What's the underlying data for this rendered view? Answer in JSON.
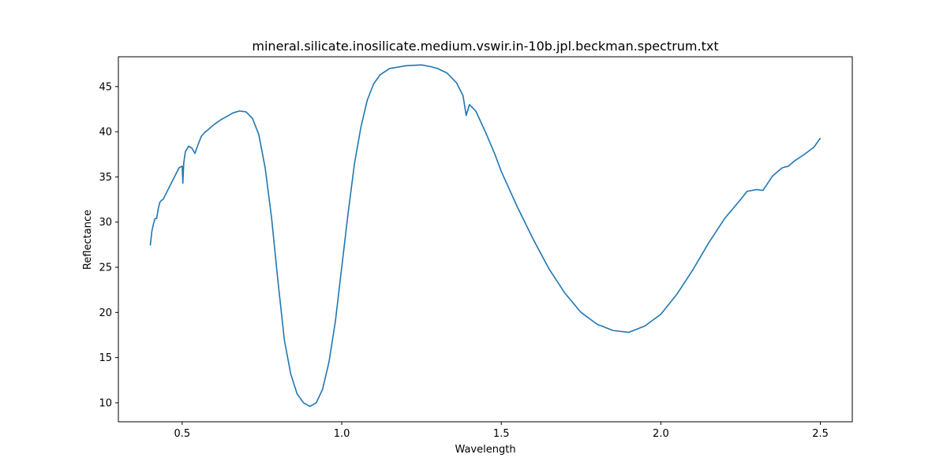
{
  "chart_data": {
    "type": "line",
    "title": "mineral.silicate.inosilicate.medium.vswir.in-10b.jpl.beckman.spectrum.txt",
    "xlabel": "Wavelength",
    "ylabel": "Reflectance",
    "xlim": [
      0.3,
      2.6
    ],
    "ylim": [
      7.9,
      48.3
    ],
    "xticks": [
      0.5,
      1.0,
      1.5,
      2.0,
      2.5
    ],
    "xtick_labels": [
      "0.5",
      "1.0",
      "1.5",
      "2.0",
      "2.5"
    ],
    "yticks": [
      10,
      15,
      20,
      25,
      30,
      35,
      40,
      45
    ],
    "ytick_labels": [
      "10",
      "15",
      "20",
      "25",
      "30",
      "35",
      "40",
      "45"
    ],
    "grid": false,
    "line_color": "#1f77b4",
    "series": [
      {
        "x": [
          0.4,
          0.405,
          0.41,
          0.415,
          0.42,
          0.425,
          0.43,
          0.435,
          0.44,
          0.45,
          0.46,
          0.47,
          0.48,
          0.49,
          0.5,
          0.502,
          0.505,
          0.51,
          0.52,
          0.53,
          0.54,
          0.55,
          0.56,
          0.57,
          0.58,
          0.6,
          0.62,
          0.64,
          0.66,
          0.68,
          0.7,
          0.72,
          0.74,
          0.76,
          0.78,
          0.8,
          0.82,
          0.84,
          0.86,
          0.88,
          0.9,
          0.92,
          0.94,
          0.96,
          0.98,
          1.0,
          1.02,
          1.04,
          1.06,
          1.08,
          1.1,
          1.12,
          1.15,
          1.2,
          1.25,
          1.28,
          1.3,
          1.33,
          1.36,
          1.38,
          1.39,
          1.4,
          1.42,
          1.45,
          1.48,
          1.5,
          1.55,
          1.6,
          1.65,
          1.7,
          1.75,
          1.8,
          1.85,
          1.9,
          1.95,
          2.0,
          2.05,
          2.1,
          2.15,
          2.2,
          2.25,
          2.27,
          2.3,
          2.32,
          2.35,
          2.38,
          2.4,
          2.42,
          2.45,
          2.48,
          2.5
        ],
        "y": [
          27.4,
          29.0,
          29.8,
          30.4,
          30.4,
          31.5,
          32.2,
          32.4,
          32.5,
          33.2,
          33.9,
          34.6,
          35.3,
          36.0,
          36.2,
          34.3,
          36.6,
          37.8,
          38.4,
          38.2,
          37.6,
          38.6,
          39.5,
          39.9,
          40.2,
          40.8,
          41.3,
          41.7,
          42.1,
          42.3,
          42.2,
          41.5,
          39.7,
          36.0,
          30.5,
          23.5,
          17.0,
          13.2,
          11.0,
          10.0,
          9.6,
          10.0,
          11.5,
          14.5,
          19.0,
          25.0,
          31.0,
          36.5,
          40.5,
          43.5,
          45.3,
          46.3,
          47.0,
          47.3,
          47.4,
          47.2,
          47.0,
          46.5,
          45.4,
          44.0,
          41.8,
          43.0,
          42.3,
          40.0,
          37.5,
          35.6,
          31.7,
          28.1,
          24.8,
          22.1,
          20.0,
          18.7,
          18.0,
          17.8,
          18.5,
          19.8,
          22.0,
          24.7,
          27.7,
          30.4,
          32.5,
          33.4,
          33.6,
          33.5,
          35.1,
          36.0,
          36.2,
          36.8,
          37.5,
          38.3,
          39.3
        ]
      }
    ]
  }
}
